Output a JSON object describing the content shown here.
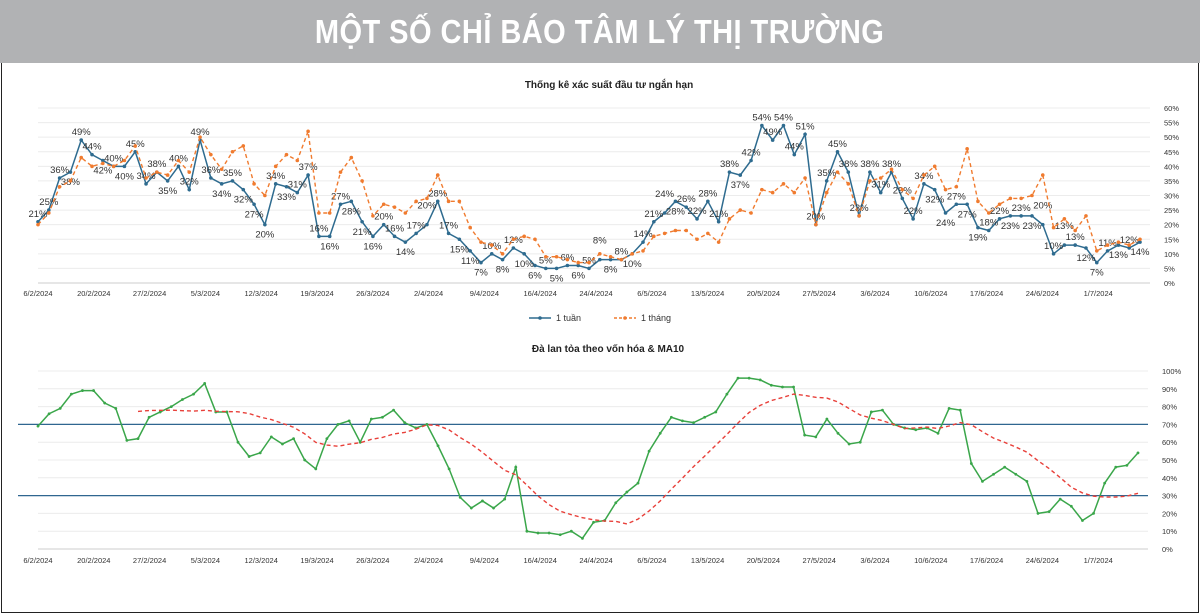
{
  "header": {
    "title": "MỘT SỐ CHỈ BÁO TÂM LÝ THỊ TRƯỜNG"
  },
  "chart_data": [
    {
      "type": "line",
      "title": "Thống kê xác suất đầu tư ngắn hạn",
      "xlabel": "",
      "ylabel": "",
      "ylim": [
        0,
        60
      ],
      "yticks": [
        "0%",
        "5%",
        "10%",
        "15%",
        "20%",
        "25%",
        "30%",
        "35%",
        "40%",
        "45%",
        "50%",
        "55%",
        "60%"
      ],
      "xticks": [
        "6/2/2024",
        "20/2/2024",
        "27/2/2024",
        "5/3/2024",
        "12/3/2024",
        "19/3/2024",
        "26/3/2024",
        "2/4/2024",
        "9/4/2024",
        "16/4/2024",
        "24/4/2024",
        "6/5/2024",
        "13/5/2024",
        "20/5/2024",
        "27/5/2024",
        "3/6/2024",
        "10/6/2024",
        "17/6/2024",
        "24/6/2024",
        "1/7/2024"
      ],
      "legend": "bottom",
      "series": [
        {
          "name": "1 tuần",
          "color": "#2e6b8f",
          "style": "solid",
          "labels": true,
          "values": [
            21,
            25,
            36,
            38,
            49,
            44,
            42,
            40,
            40,
            45,
            34,
            38,
            35,
            40,
            32,
            49,
            36,
            34,
            35,
            32,
            27,
            20,
            34,
            33,
            31,
            37,
            16,
            16,
            27,
            28,
            21,
            16,
            20,
            16,
            14,
            17,
            20,
            28,
            17,
            15,
            11,
            7,
            10,
            8,
            12,
            10,
            6,
            5,
            5,
            6,
            6,
            5,
            8,
            8,
            8,
            10,
            14,
            21,
            24,
            28,
            26,
            22,
            28,
            21,
            38,
            37,
            42,
            54,
            49,
            54,
            44,
            51,
            20,
            35,
            45,
            38,
            23,
            38,
            31,
            38,
            29,
            22,
            34,
            32,
            24,
            27,
            27,
            19,
            18,
            22,
            23,
            23,
            23,
            20,
            10,
            13,
            13,
            12,
            7,
            11,
            13,
            12,
            14
          ]
        },
        {
          "name": "1 tháng",
          "color": "#f07b2f",
          "style": "dashed",
          "labels": false,
          "values": [
            20,
            24,
            33,
            35,
            43,
            40,
            41,
            40,
            42,
            47,
            36,
            38,
            37,
            42,
            38,
            50,
            44,
            39,
            45,
            47,
            34,
            30,
            40,
            44,
            42,
            52,
            24,
            24,
            38,
            43,
            35,
            23,
            27,
            26,
            24,
            28,
            29,
            37,
            28,
            28,
            19,
            14,
            13,
            10,
            15,
            16,
            15,
            9,
            9,
            8,
            7,
            7,
            10,
            9,
            8,
            10,
            11,
            16,
            17,
            18,
            18,
            15,
            17,
            14,
            22,
            25,
            24,
            32,
            31,
            34,
            31,
            36,
            20,
            31,
            38,
            34,
            23,
            35,
            36,
            39,
            32,
            29,
            37,
            40,
            32,
            33,
            46,
            28,
            24,
            27,
            29,
            29,
            30,
            37,
            19,
            22,
            18,
            23,
            11,
            13,
            14,
            13,
            15
          ]
        }
      ]
    },
    {
      "type": "line",
      "title": "Đà lan tỏa theo vốn hóa & MA10",
      "xlabel": "",
      "ylabel": "",
      "ylim": [
        0,
        100
      ],
      "yticks": [
        "0%",
        "10%",
        "20%",
        "30%",
        "40%",
        "50%",
        "60%",
        "70%",
        "80%",
        "90%",
        "100%"
      ],
      "xticks": [
        "6/2/2024",
        "20/2/2024",
        "27/2/2024",
        "5/3/2024",
        "12/3/2024",
        "19/3/2024",
        "26/3/2024",
        "2/4/2024",
        "9/4/2024",
        "16/4/2024",
        "24/4/2024",
        "6/5/2024",
        "13/5/2024",
        "20/5/2024",
        "27/5/2024",
        "3/6/2024",
        "10/6/2024",
        "17/6/2024",
        "24/6/2024",
        "1/7/2024"
      ],
      "reference_lines": [
        70,
        30
      ],
      "series": [
        {
          "name": "Đà lan tỏa",
          "color": "#3aa64a",
          "style": "solid",
          "values": [
            69,
            76,
            79,
            87,
            89,
            89,
            82,
            79,
            61,
            62,
            74,
            77,
            80,
            84,
            87,
            93,
            77,
            77,
            60,
            52,
            54,
            63,
            59,
            62,
            50,
            45,
            62,
            70,
            72,
            60,
            73,
            74,
            78,
            71,
            68,
            70,
            58,
            45,
            29,
            23,
            27,
            23,
            28,
            46,
            10,
            9,
            9,
            8,
            10,
            6,
            15,
            16,
            26,
            32,
            37,
            55,
            65,
            74,
            72,
            71,
            74,
            77,
            87,
            96,
            96,
            95,
            92,
            91,
            91,
            64,
            63,
            73,
            65,
            59,
            60,
            77,
            78,
            70,
            68,
            67,
            68,
            65,
            79,
            78,
            48,
            38,
            42,
            46,
            42,
            38,
            20,
            21,
            28,
            24,
            16,
            20,
            37,
            46,
            47,
            54
          ]
        },
        {
          "name": "MA10",
          "color": "#e8403a",
          "style": "dashed",
          "window": 10
        }
      ]
    }
  ]
}
